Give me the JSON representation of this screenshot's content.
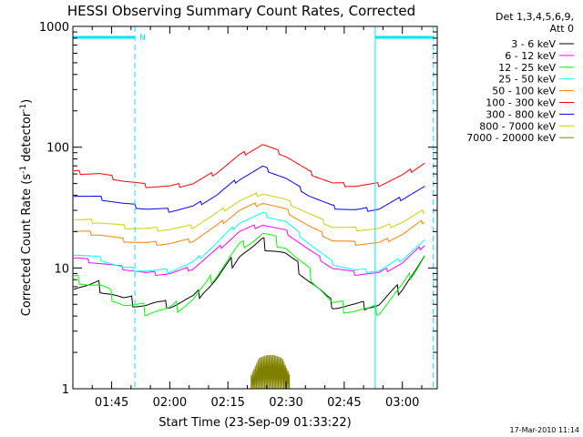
{
  "chart_data": {
    "type": "line",
    "title": "HESSI Observing Summary Count Rates, Corrected",
    "xlabel": "Start Time (23-Sep-09 01:33:22)",
    "ylabel_main": "Corrected Count Rate (s",
    "ylabel_sup1": "-1",
    "ylabel_mid": " detector",
    "ylabel_sup2": "-1",
    "ylabel_end": ")",
    "yscale": "log",
    "xlim": [
      "01:35",
      "03:09"
    ],
    "ylim": [
      1,
      1000
    ],
    "x_ticks": [
      "01:45",
      "02:00",
      "02:15",
      "02:30",
      "02:45",
      "03:00"
    ],
    "y_ticks": [
      "1",
      "10",
      "100",
      "1000"
    ],
    "legend_header_1": "Det 1,3,4,5,6,9,",
    "legend_header_2": "Att 0",
    "timestamp": "17-Mar-2010 11:14",
    "night_label": "N",
    "markers": {
      "solid": [
        "01:35",
        "02:53"
      ],
      "dashed": [
        "01:51",
        "03:08"
      ],
      "night_bars": [
        [
          "01:35",
          "01:51"
        ],
        [
          "02:53",
          "03:08"
        ]
      ]
    },
    "series": [
      {
        "name": "3 - 6 keV",
        "color": "#000000",
        "x": [
          "01:36",
          "01:42",
          "01:48",
          "01:54",
          "02:00",
          "02:06",
          "02:12",
          "02:18",
          "02:24",
          "02:30",
          "02:36",
          "02:42",
          "02:48",
          "02:54",
          "03:00",
          "03:06"
        ],
        "y": [
          7,
          7,
          5.5,
          5,
          5,
          5.5,
          8,
          13,
          16,
          13,
          8,
          5,
          4.8,
          5,
          7,
          12
        ]
      },
      {
        "name": "6 - 12 keV",
        "color": "#ff00ff",
        "x": [
          "01:36",
          "01:42",
          "01:48",
          "01:54",
          "02:00",
          "02:06",
          "02:12",
          "02:18",
          "02:24",
          "02:30",
          "02:36",
          "02:42",
          "02:48",
          "02:54",
          "03:00",
          "03:06"
        ],
        "y": [
          12,
          11,
          10,
          9,
          9,
          10,
          14,
          20,
          23,
          20,
          14,
          10,
          9,
          9,
          11,
          16
        ]
      },
      {
        "name": "12 - 25 keV",
        "color": "#00ff00",
        "x": [
          "01:36",
          "01:42",
          "01:48",
          "01:54",
          "02:00",
          "02:06",
          "02:12",
          "02:18",
          "02:24",
          "02:30",
          "02:36",
          "02:42",
          "02:48",
          "02:54",
          "03:00",
          "03:06"
        ],
        "y": [
          8,
          7,
          5,
          4.5,
          4.5,
          5.5,
          9,
          15,
          19,
          15,
          9,
          5,
          4.5,
          4.5,
          7,
          13
        ]
      },
      {
        "name": "25 - 50 keV",
        "color": "#00ffff",
        "x": [
          "01:36",
          "01:42",
          "01:48",
          "01:54",
          "02:00",
          "02:06",
          "02:12",
          "02:18",
          "02:24",
          "02:30",
          "02:36",
          "02:42",
          "02:48",
          "02:54",
          "03:00",
          "03:06"
        ],
        "y": [
          13,
          12,
          10,
          9.5,
          9.5,
          11,
          16,
          24,
          28,
          24,
          16,
          11,
          9.5,
          9.5,
          12,
          17
        ]
      },
      {
        "name": "50 - 100 keV",
        "color": "#ff7f00",
        "x": [
          "01:36",
          "01:42",
          "01:48",
          "01:54",
          "02:00",
          "02:06",
          "02:12",
          "02:18",
          "02:24",
          "02:30",
          "02:36",
          "02:42",
          "02:48",
          "02:54",
          "03:00",
          "03:06"
        ],
        "y": [
          20,
          19,
          17,
          16,
          16,
          17,
          22,
          30,
          35,
          30,
          22,
          17,
          16,
          16,
          19,
          25
        ]
      },
      {
        "name": "100 - 300 keV",
        "color": "#ff0000",
        "x": [
          "01:36",
          "01:42",
          "01:48",
          "01:54",
          "02:00",
          "02:06",
          "02:12",
          "02:18",
          "02:24",
          "02:30",
          "02:36",
          "02:42",
          "02:48",
          "02:54",
          "03:00",
          "03:06"
        ],
        "y": [
          62,
          60,
          53,
          48,
          47,
          50,
          62,
          85,
          105,
          85,
          62,
          50,
          48,
          49,
          58,
          75
        ]
      },
      {
        "name": "300 - 800 keV",
        "color": "#0000ff",
        "x": [
          "01:36",
          "01:42",
          "01:48",
          "01:54",
          "02:00",
          "02:06",
          "02:12",
          "02:18",
          "02:24",
          "02:30",
          "02:36",
          "02:42",
          "02:48",
          "02:54",
          "03:00",
          "03:06"
        ],
        "y": [
          40,
          38,
          34,
          31,
          30,
          32,
          40,
          55,
          68,
          55,
          40,
          32,
          30,
          31,
          38,
          47
        ]
      },
      {
        "name": "800 - 7000 keV",
        "color": "#d0d000",
        "x": [
          "01:36",
          "01:42",
          "01:48",
          "01:54",
          "02:00",
          "02:06",
          "02:12",
          "02:18",
          "02:24",
          "02:30",
          "02:36",
          "02:42",
          "02:48",
          "02:54",
          "03:00",
          "03:06"
        ],
        "y": [
          25,
          24,
          22,
          21,
          21,
          22,
          28,
          36,
          42,
          36,
          28,
          22,
          21,
          21,
          24,
          30
        ]
      },
      {
        "name": "7000 - 20000 keV",
        "color": "#808000",
        "x": [
          "02:21",
          "02:23",
          "02:25",
          "02:27",
          "02:29",
          "02:31"
        ],
        "y": [
          1.3,
          1.8,
          1.9,
          1.9,
          1.8,
          1.3
        ]
      }
    ]
  }
}
